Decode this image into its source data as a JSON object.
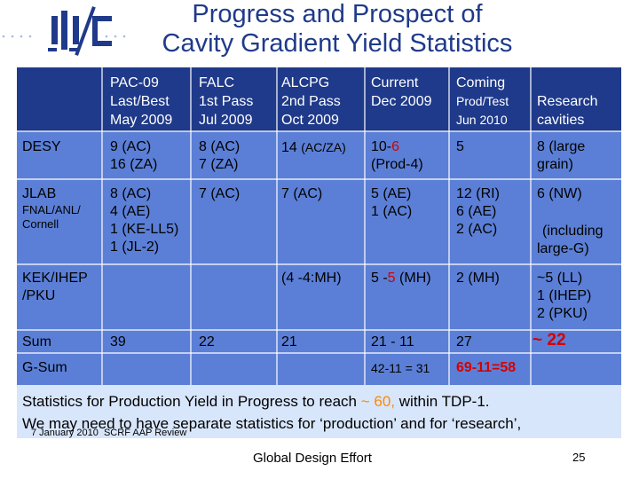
{
  "header": {
    "title_line1": "Progress and Prospect of",
    "title_line2": "Cavity Gradient Yield Statistics",
    "logo_label": "ilc"
  },
  "table": {
    "columns": [
      {
        "l1": "PAC-09",
        "l2": "Last/Best",
        "l3": "May 2009"
      },
      {
        "l1": "FALC",
        "l2": "1st Pass",
        "l3": "Jul 2009"
      },
      {
        "l1": "ALCPG",
        "l2": "2nd Pass",
        "l3": "Oct 2009"
      },
      {
        "l1": "Current",
        "l2": "Dec 2009",
        "l3": ""
      },
      {
        "l1": "Coming",
        "l2": "Prod/Test",
        "l3": "Jun 2010"
      },
      {
        "l1": "",
        "l2": "Research",
        "l3": "cavities"
      }
    ],
    "rows": {
      "desy": {
        "name": "DESY",
        "pac_l1": "9 (AC)",
        "pac_l2": "16 (ZA)",
        "falc_l1": "8 (AC)",
        "falc_l2": "7 (ZA)",
        "alcpg_main": "14",
        "alcpg_small": "(AC/ZA)",
        "cur_a": "10-",
        "cur_b": "6",
        "cur_l2": "(Prod-4)",
        "coming": "5",
        "research_l1": "8 (large",
        "research_l2": "grain)"
      },
      "jlab": {
        "name": "JLAB",
        "sub1": "FNAL/ANL/",
        "sub2": "Cornell",
        "pac_l1": "8 (AC)",
        "pac_l2": "4 (AE)",
        "pac_l3": "1 (KE-LL5)",
        "pac_l4": "1 (JL-2)",
        "falc": "7 (AC)",
        "alcpg": "7 (AC)",
        "cur_l1": "5 (AE)",
        "cur_l2": "1 (AC)",
        "coming_l1": "12 (RI)",
        "coming_l2": "6 (AE)",
        "coming_l3": "2 (AC)",
        "research_l1": "6 (NW)",
        "research_l2": "(including",
        "research_l3": "large-G)"
      },
      "kek": {
        "name_l1": "KEK/IHEP",
        "name_l2": "/PKU",
        "alcpg": "(4 -4:MH)",
        "cur_a": "5 -",
        "cur_b": "5",
        "cur_c": "(MH)",
        "coming": "2 (MH)",
        "research_l1": "~5 (LL)",
        "research_l2": "1 (IHEP)",
        "research_l3": "2 (PKU)"
      },
      "sum": {
        "name": "Sum",
        "pac": "39",
        "falc": "22",
        "alcpg": "21",
        "cur_a": "21 -",
        "cur_b": "11",
        "coming": "27",
        "research_a": "~",
        "research_b": "22"
      },
      "gsum": {
        "name": "G-Sum",
        "cur_a": "42-11 =",
        "cur_b": "31",
        "coming": "69-11=58"
      }
    }
  },
  "footer": {
    "line1_a": "Statistics for Production Yield in Progress to reach",
    "line1_b": "~ 60,",
    "line1_c": "within TDP-1.",
    "line2": "We may need to have separate statistics for ‘production’ and for ‘research’,"
  },
  "bottom": {
    "date": "7 January 2010",
    "event": "SCRF AAP Review",
    "org": "Global Design Effort",
    "page": "25"
  },
  "colors": {
    "table_dark": "#1f3a8a",
    "table_light": "#5b7fd6",
    "footer_bg": "#d8e6fb",
    "highlight_red": "#d40000",
    "highlight_orange": "#ff8800"
  }
}
